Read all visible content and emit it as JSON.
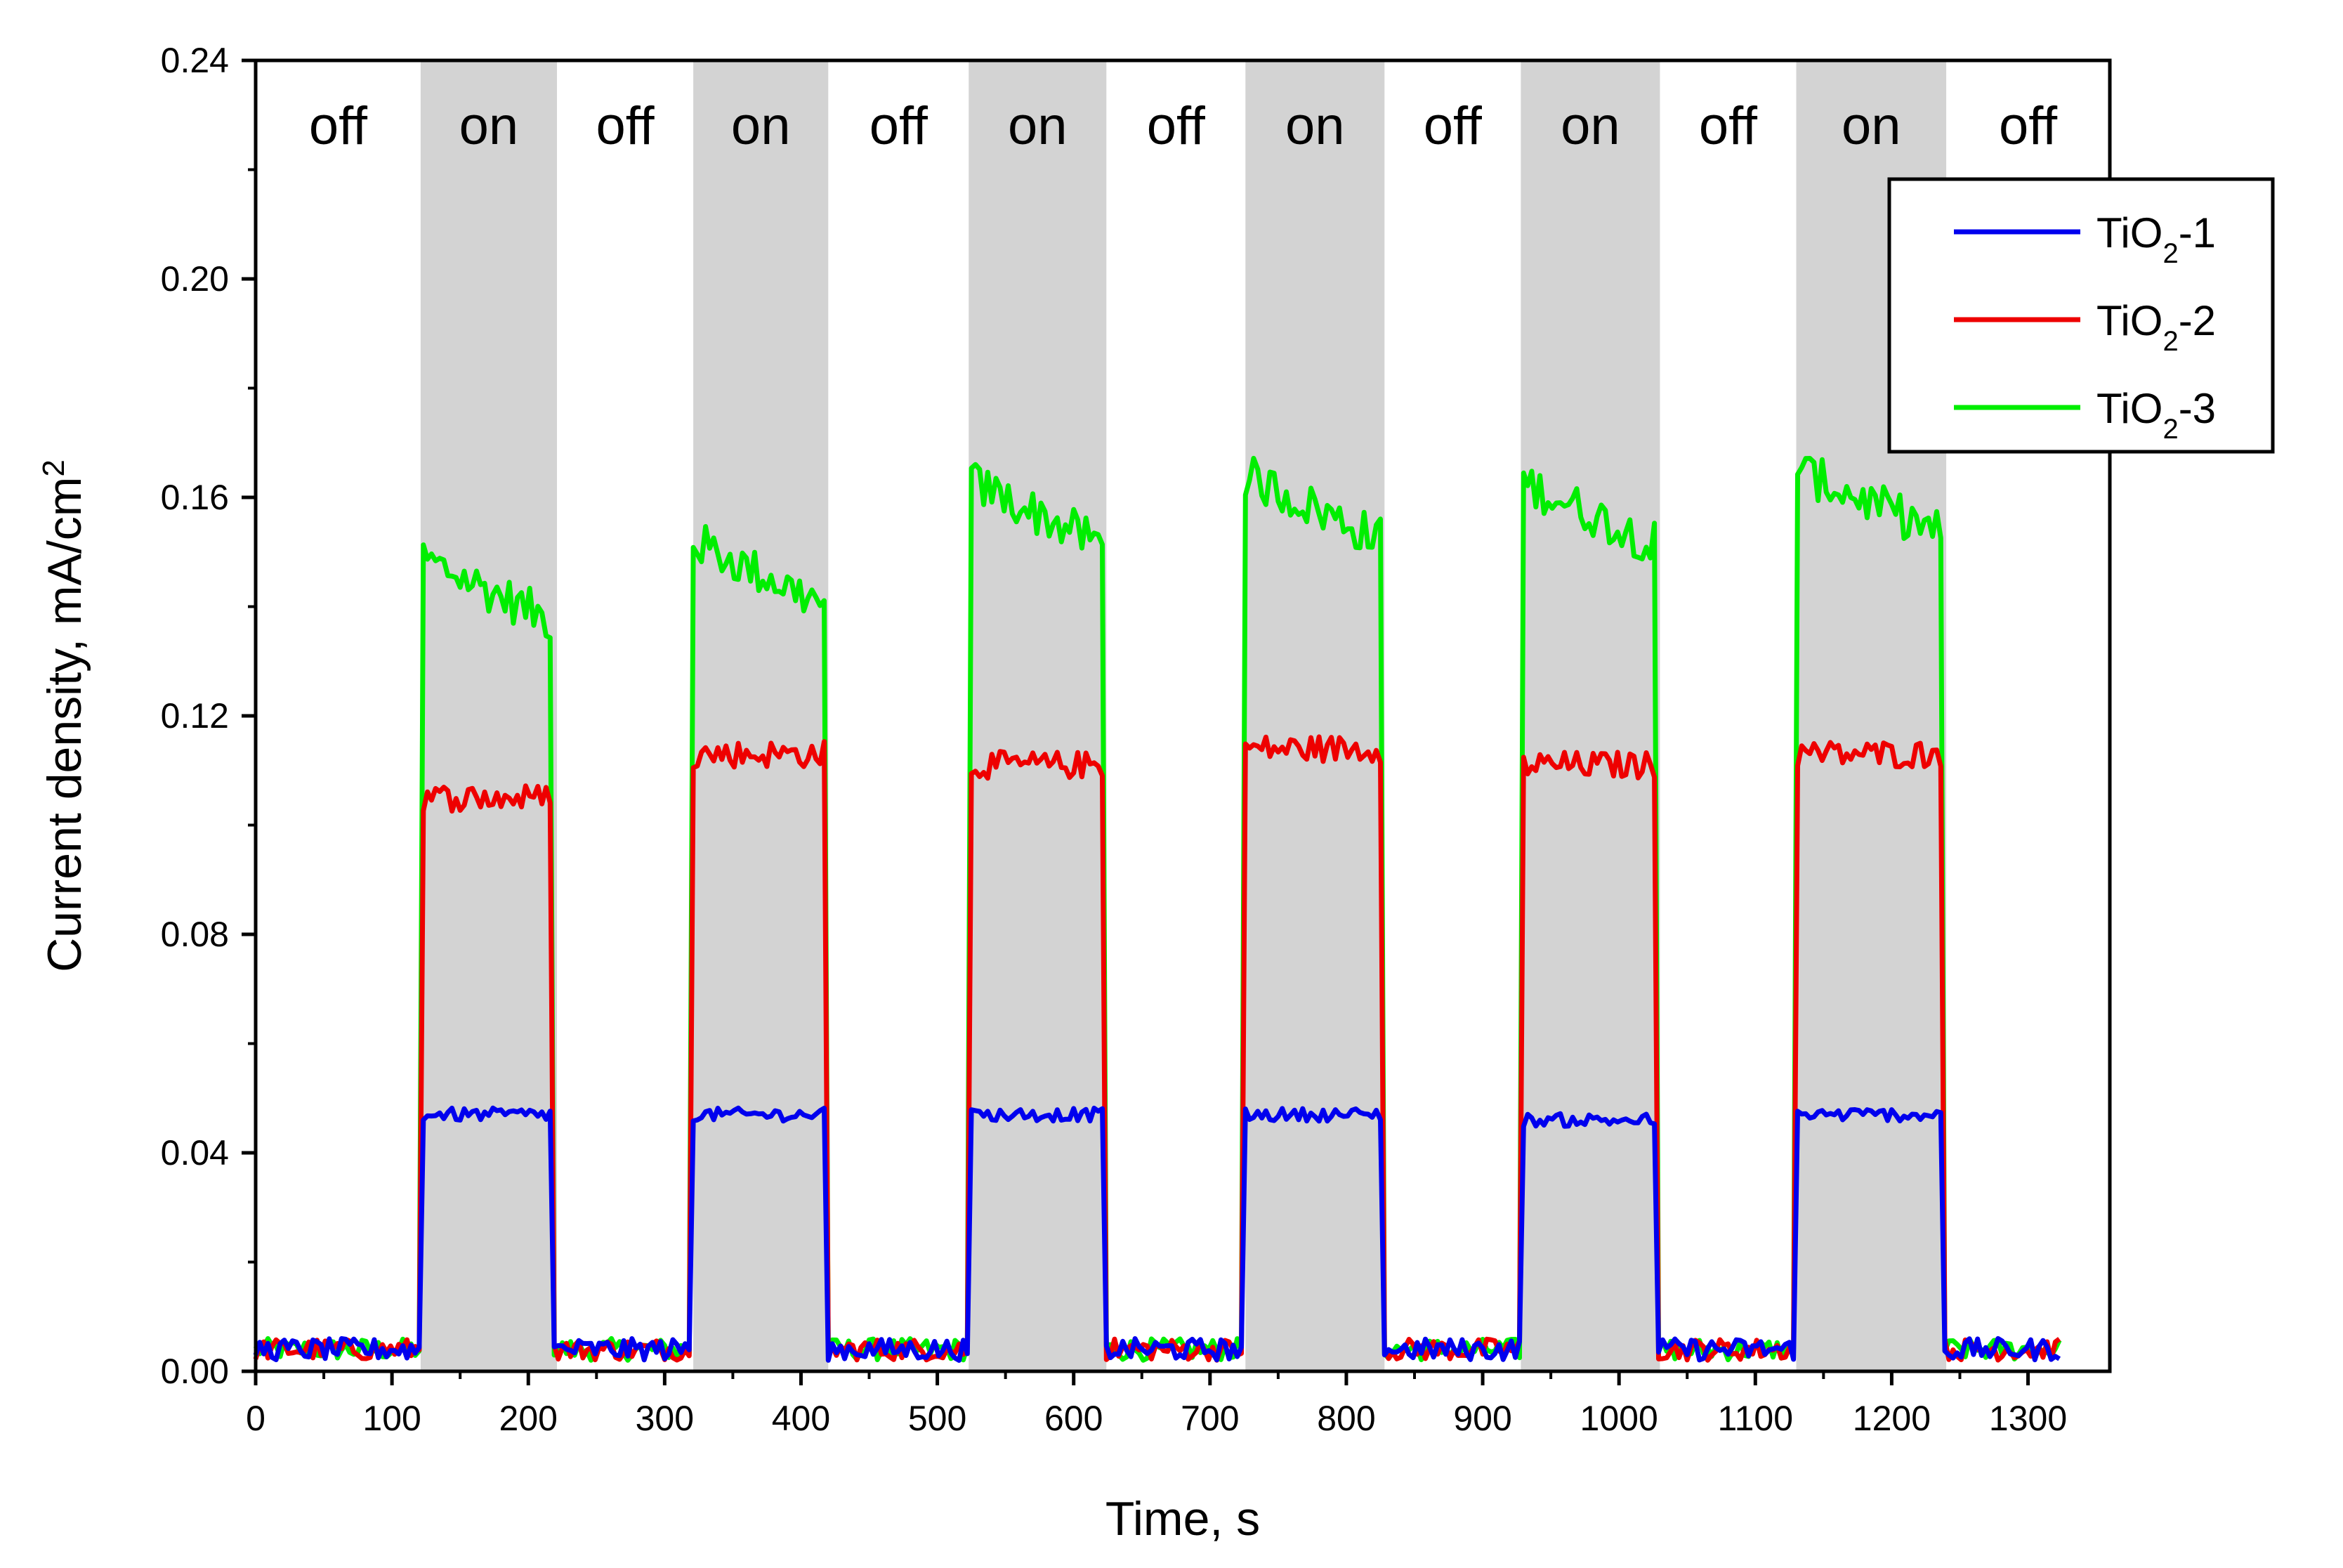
{
  "chart_data": {
    "type": "line",
    "title": "",
    "xlabel": "Time, s",
    "ylabel": "Current density, mA/cm",
    "ylabel_sup": "2",
    "xlim": [
      0,
      1360
    ],
    "ylim": [
      0,
      0.24
    ],
    "x_ticks": [
      0,
      100,
      200,
      300,
      400,
      500,
      600,
      700,
      800,
      900,
      1000,
      1100,
      1200,
      1300
    ],
    "x_tick_labels": [
      "0",
      "100",
      "200",
      "300",
      "400",
      "500",
      "600",
      "700",
      "800",
      "900",
      "1000",
      "1100",
      "1200",
      "1300"
    ],
    "y_ticks": [
      0,
      0.04,
      0.08,
      0.12,
      0.16,
      0.2,
      0.24
    ],
    "y_tick_labels": [
      "0.00",
      "0.04",
      "0.08",
      "0.12",
      "0.16",
      "0.20",
      "0.24"
    ],
    "grid": false,
    "legend_position": "top-right",
    "light_bands": [
      {
        "state": "off",
        "start": 0,
        "end": 121
      },
      {
        "state": "on",
        "start": 121,
        "end": 221
      },
      {
        "state": "off",
        "start": 221,
        "end": 321
      },
      {
        "state": "on",
        "start": 321,
        "end": 420
      },
      {
        "state": "off",
        "start": 420,
        "end": 523
      },
      {
        "state": "on",
        "start": 523,
        "end": 624
      },
      {
        "state": "off",
        "start": 624,
        "end": 726
      },
      {
        "state": "on",
        "start": 726,
        "end": 828
      },
      {
        "state": "off",
        "start": 828,
        "end": 928
      },
      {
        "state": "on",
        "start": 928,
        "end": 1030
      },
      {
        "state": "off",
        "start": 1030,
        "end": 1130
      },
      {
        "state": "on",
        "start": 1130,
        "end": 1240
      },
      {
        "state": "off",
        "start": 1240,
        "end": 1360
      }
    ],
    "series": [
      {
        "name": "TiO2-1",
        "label_main": "TiO",
        "label_sub": "2",
        "label_tail": "-1",
        "color": "#0000ee",
        "on_level": 0.047,
        "on_levels": [
          0.047,
          0.047,
          0.047,
          0.047,
          0.046,
          0.047
        ],
        "off_level": 0.004
      },
      {
        "name": "TiO2-2",
        "label_main": "TiO",
        "label_sub": "2",
        "label_tail": "-2",
        "color": "#ee0000",
        "on_level": 0.112,
        "on_levels": [
          0.105,
          0.113,
          0.111,
          0.114,
          0.111,
          0.113
        ],
        "off_level": 0.004
      },
      {
        "name": "TiO2-3",
        "label_main": "TiO",
        "label_sub": "2",
        "label_tail": "-3",
        "color": "#00ee00",
        "on_level": 0.156,
        "on_levels": [
          0.143,
          0.146,
          0.157,
          0.158,
          0.157,
          0.159
        ],
        "off_level": 0.004
      }
    ]
  }
}
